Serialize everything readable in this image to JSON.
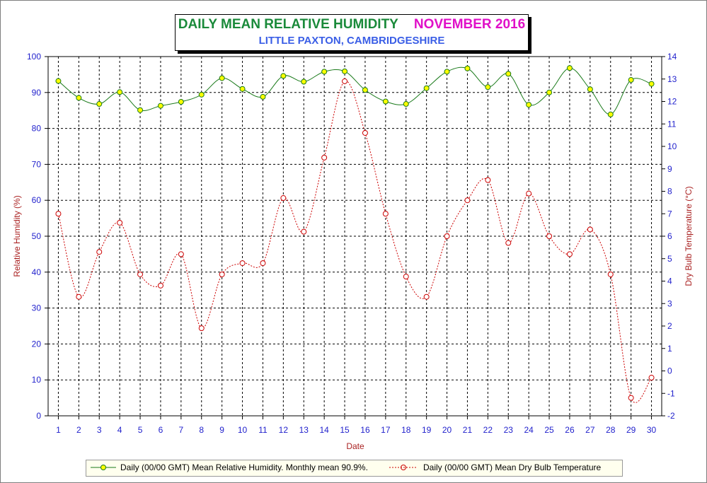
{
  "title": {
    "main": "DAILY MEAN RELATIVE HUMIDITY",
    "month": "NOVEMBER 2016",
    "subtitle": "LITTLE PAXTON, CAMBRIDGESHIRE"
  },
  "colors": {
    "title_main": "#1a8a3a",
    "title_month": "#e010c8",
    "subtitle": "#3a5ee6",
    "humidity_line": "#1a7a1a",
    "humidity_marker_fill": "#ffff00",
    "temperature_line": "#cc0000",
    "axis_text_left": "#1f1fcc",
    "axis_label_left": "#aa2222",
    "legend_bg": "#ffffee"
  },
  "chart_data": {
    "type": "line",
    "xlabel": "Date",
    "ylabel_left": "Relative Humidity (%)",
    "ylabel_right": "Dry Bulb Temperature (°C)",
    "x": [
      1,
      2,
      3,
      4,
      5,
      6,
      7,
      8,
      9,
      10,
      11,
      12,
      13,
      14,
      15,
      16,
      17,
      18,
      19,
      20,
      21,
      22,
      23,
      24,
      25,
      26,
      27,
      28,
      29,
      30
    ],
    "xlim": [
      0.5,
      30.5
    ],
    "ylim_left": [
      0,
      100
    ],
    "ylim_right": [
      -2,
      14
    ],
    "yticks_left": [
      0,
      10,
      20,
      30,
      40,
      50,
      60,
      70,
      80,
      90,
      100
    ],
    "yticks_right": [
      -2,
      -1,
      0,
      1,
      2,
      3,
      4,
      5,
      6,
      7,
      8,
      9,
      10,
      11,
      12,
      13,
      14
    ],
    "grid": true,
    "legend_position": "bottom",
    "series": [
      {
        "name": "Daily (00/00 GMT) Mean Relative Humidity. Monthly mean 90.9%.",
        "axis": "left",
        "marker": "filled-circle",
        "line_style": "solid",
        "values": [
          93.2,
          88.5,
          86.8,
          90.1,
          85.1,
          86.3,
          87.4,
          89.4,
          94.0,
          91.0,
          88.8,
          94.6,
          93.0,
          95.8,
          95.9,
          90.7,
          87.5,
          86.8,
          91.2,
          95.8,
          96.7,
          91.5,
          95.2,
          86.6,
          90.0,
          96.8,
          90.9,
          83.9,
          93.5,
          92.4
        ]
      },
      {
        "name": "Daily (00/00 GMT) Mean Dry Bulb Temperature",
        "axis": "right",
        "marker": "open-circle",
        "line_style": "dotted",
        "values": [
          7.0,
          3.3,
          5.3,
          6.6,
          4.3,
          3.8,
          5.2,
          1.9,
          4.3,
          4.8,
          4.8,
          7.7,
          6.2,
          9.5,
          12.9,
          10.6,
          7.0,
          4.2,
          3.3,
          6.0,
          7.6,
          8.5,
          5.7,
          7.9,
          6.0,
          5.2,
          6.3,
          4.3,
          -1.2,
          -0.3
        ]
      }
    ]
  }
}
